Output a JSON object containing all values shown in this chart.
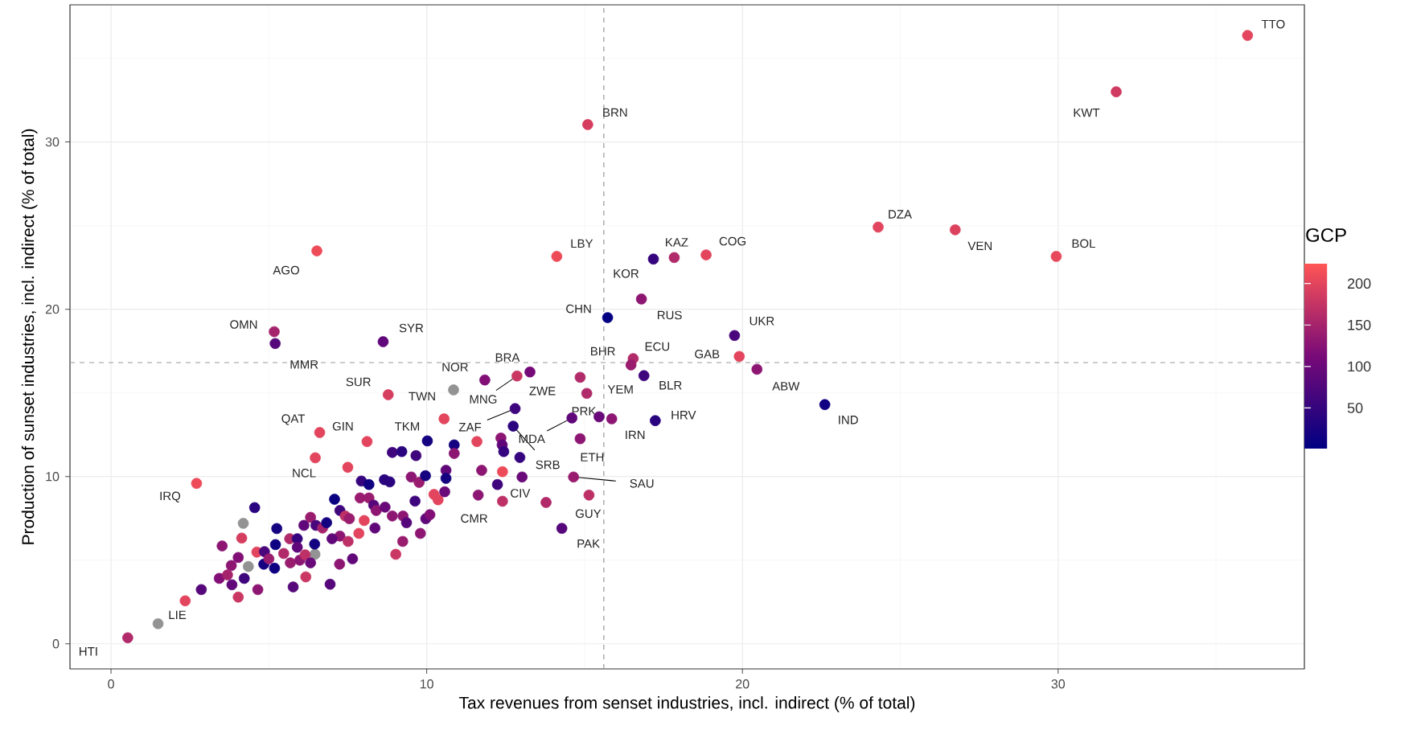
{
  "chart_data": {
    "type": "scatter",
    "xlabel": "Tax revenues from senset industries, incl. indirect (% of total)",
    "ylabel": "Production of sunset industries, incl. indirect (% of total)",
    "clabel": "GCP",
    "xlim": [
      -1.3,
      37.8
    ],
    "ylim": [
      -1.5,
      38.2
    ],
    "xticks": [
      0,
      10,
      20,
      30
    ],
    "yticks": [
      0,
      10,
      20,
      30
    ],
    "clim": [
      1,
      224
    ],
    "cticks": [
      50,
      100,
      150,
      200
    ],
    "grid": true,
    "marker": "circle",
    "x": [
      0.53,
      1.49,
      2.35,
      2.86,
      2.71,
      4.55,
      4.19,
      4.14,
      3.52,
      5.25,
      6.47,
      7.5,
      4.62,
      4.35,
      4.03,
      3.81,
      3.43,
      3.69,
      3.83,
      4.22,
      4.03,
      4.65,
      4.86,
      4.84,
      5.18,
      5.21,
      5.0,
      5.47,
      5.66,
      5.9,
      5.9,
      5.68,
      5.98,
      6.15,
      6.32,
      6.11,
      6.32,
      6.49,
      6.46,
      6.45,
      5.77,
      6.17,
      6.94,
      7.24,
      7.65,
      6.7,
      6.83,
      7.08,
      7.25,
      7.42,
      7.55,
      7.25,
      7.51,
      7.0,
      8.02,
      7.85,
      7.93,
      8.17,
      7.89,
      8.17,
      8.32,
      8.4,
      8.36,
      8.68,
      8.66,
      8.83,
      8.91,
      9.25,
      9.36,
      9.02,
      9.24,
      9.8,
      9.63,
      9.51,
      9.76,
      9.96,
      8.91,
      9.21,
      9.66,
      10.23,
      10.36,
      9.97,
      10.1,
      10.61,
      10.57,
      10.61,
      8.11,
      6.61,
      10.02,
      10.55,
      10.87,
      10.87,
      8.62,
      8.78,
      10.85,
      11.84,
      12.86,
      13.27,
      12.8,
      12.74,
      12.35,
      12.39,
      12.44,
      12.95,
      11.59,
      11.74,
      12.4,
      13.02,
      12.24,
      11.63,
      12.4,
      13.78,
      14.28,
      15.14,
      14.65,
      14.86,
      14.6,
      15.46,
      15.86,
      14.86,
      15.07,
      16.54,
      16.47,
      16.88,
      17.24,
      15.73,
      19.75,
      19.9,
      20.46,
      22.61,
      16.8,
      36.0,
      31.84,
      24.3,
      26.74,
      29.94,
      15.1,
      14.12,
      17.18,
      17.84,
      18.85,
      6.52,
      5.17,
      5.2
    ],
    "values": [
      0.36,
      1.2,
      2.57,
      3.24,
      9.59,
      8.14,
      7.2,
      6.32,
      5.85,
      6.89,
      11.12,
      10.55,
      5.48,
      4.62,
      5.16,
      4.68,
      3.91,
      4.12,
      3.53,
      3.91,
      2.79,
      3.24,
      5.51,
      4.76,
      4.52,
      5.93,
      5.08,
      5.4,
      6.28,
      6.28,
      5.77,
      4.84,
      5.0,
      5.32,
      4.84,
      7.08,
      7.56,
      7.08,
      5.35,
      5.96,
      3.4,
      4.0,
      3.56,
      4.76,
      5.08,
      6.92,
      7.24,
      8.64,
      7.97,
      7.64,
      7.48,
      6.44,
      6.12,
      6.28,
      7.37,
      6.6,
      9.73,
      9.52,
      8.72,
      8.72,
      8.29,
      7.97,
      6.92,
      8.17,
      9.81,
      9.68,
      7.64,
      7.64,
      7.24,
      5.35,
      6.12,
      6.6,
      8.53,
      9.97,
      9.65,
      10.05,
      11.44,
      11.49,
      11.25,
      8.93,
      8.61,
      7.48,
      7.72,
      10.37,
      9.09,
      9.89,
      12.09,
      12.63,
      12.13,
      13.45,
      11.89,
      11.38,
      18.06,
      14.89,
      15.18,
      15.77,
      16.01,
      16.25,
      14.06,
      13.01,
      12.3,
      11.89,
      11.49,
      11.14,
      12.09,
      10.37,
      10.29,
      9.97,
      9.52,
      8.89,
      8.52,
      8.45,
      6.9,
      8.89,
      9.97,
      12.26,
      13.5,
      13.57,
      13.45,
      15.93,
      14.97,
      17.05,
      16.67,
      16.03,
      13.34,
      19.5,
      18.43,
      17.18,
      16.41,
      14.3,
      20.61,
      36.37,
      33.0,
      24.91,
      24.75,
      23.16,
      31.04,
      23.16,
      23.0,
      23.09,
      23.25,
      23.49,
      18.66,
      17.95
    ],
    "cvalues": [
      160,
      null,
      200,
      80,
      210,
      40,
      null,
      190,
      130,
      20,
      200,
      200,
      200,
      null,
      120,
      130,
      120,
      150,
      90,
      60,
      180,
      130,
      70,
      20,
      15,
      15,
      140,
      160,
      160,
      50,
      90,
      140,
      130,
      170,
      100,
      90,
      140,
      70,
      null,
      20,
      80,
      180,
      80,
      130,
      90,
      150,
      20,
      10,
      60,
      170,
      140,
      130,
      170,
      90,
      200,
      200,
      50,
      15,
      140,
      140,
      80,
      130,
      90,
      100,
      40,
      40,
      130,
      130,
      80,
      180,
      140,
      130,
      60,
      130,
      140,
      20,
      60,
      40,
      60,
      200,
      200,
      90,
      120,
      90,
      100,
      20,
      200,
      200,
      20,
      200,
      20,
      130,
      90,
      190,
      null,
      120,
      180,
      110,
      60,
      40,
      130,
      90,
      50,
      50,
      200,
      130,
      210,
      100,
      60,
      130,
      170,
      160,
      80,
      170,
      140,
      130,
      90,
      100,
      130,
      160,
      160,
      160,
      140,
      60,
      40,
      5,
      70,
      200,
      130,
      15,
      130,
      200,
      185,
      200,
      195,
      205,
      190,
      210,
      50,
      160,
      200,
      210,
      150,
      80
    ],
    "ref_lines": [
      {
        "axis": "x",
        "value": 15.61,
        "color": "#999999",
        "line_style": "dashed"
      },
      {
        "axis": "y",
        "value": 16.81,
        "color": "#999999",
        "line_style": "dashed"
      }
    ],
    "annotations": [
      {
        "text": "HTI",
        "x": 0.53,
        "y": 0.36
      },
      {
        "text": "LIE",
        "x": 1.49,
        "y": 1.2
      },
      {
        "text": "IRQ",
        "x": 2.71,
        "y": 9.59
      },
      {
        "text": "NCL",
        "x": 6.47,
        "y": 11.12
      },
      {
        "text": "GIN",
        "x": 8.11,
        "y": 12.09
      },
      {
        "text": "QAT",
        "x": 6.61,
        "y": 12.63
      },
      {
        "text": "TKM",
        "x": 10.02,
        "y": 12.13
      },
      {
        "text": "SYR",
        "x": 8.62,
        "y": 18.06
      },
      {
        "text": "SUR",
        "x": 8.78,
        "y": 14.89
      },
      {
        "text": "TWN",
        "x": 10.85,
        "y": 15.18
      },
      {
        "text": "NOR",
        "x": 11.84,
        "y": 15.77
      },
      {
        "text": "MNG",
        "x": 12.86,
        "y": 16.01
      },
      {
        "text": "BRA",
        "x": 13.27,
        "y": 16.25
      },
      {
        "text": "ZAF",
        "x": 12.8,
        "y": 14.06
      },
      {
        "text": "SRB",
        "x": 12.74,
        "y": 13.01
      },
      {
        "text": "ZWE",
        "x": 12.8,
        "y": 14.06
      },
      {
        "text": "CMR",
        "x": 11.63,
        "y": 8.89
      },
      {
        "text": "CIV",
        "x": 12.4,
        "y": 8.52
      },
      {
        "text": "PAK",
        "x": 14.28,
        "y": 6.9
      },
      {
        "text": "GUY",
        "x": 15.14,
        "y": 8.89
      },
      {
        "text": "SAU",
        "x": 14.65,
        "y": 9.97
      },
      {
        "text": "ETH",
        "x": 14.86,
        "y": 12.26
      },
      {
        "text": "MDA",
        "x": 14.6,
        "y": 13.5
      },
      {
        "text": "PRK",
        "x": 15.46,
        "y": 13.57
      },
      {
        "text": "IRN",
        "x": 15.86,
        "y": 13.45
      },
      {
        "text": "YEM",
        "x": 15.07,
        "y": 14.97
      },
      {
        "text": "ECU",
        "x": 16.54,
        "y": 17.05
      },
      {
        "text": "BHR",
        "x": 16.47,
        "y": 16.67
      },
      {
        "text": "BLR",
        "x": 16.88,
        "y": 16.03
      },
      {
        "text": "HRV",
        "x": 17.24,
        "y": 13.34
      },
      {
        "text": "CHN",
        "x": 15.73,
        "y": 19.5
      },
      {
        "text": "UKR",
        "x": 19.75,
        "y": 18.43
      },
      {
        "text": "GAB",
        "x": 19.9,
        "y": 17.18
      },
      {
        "text": "ABW",
        "x": 20.46,
        "y": 16.41
      },
      {
        "text": "IND",
        "x": 22.61,
        "y": 14.3
      },
      {
        "text": "RUS",
        "x": 16.8,
        "y": 20.61
      },
      {
        "text": "TTO",
        "x": 36.0,
        "y": 36.37
      },
      {
        "text": "KWT",
        "x": 31.84,
        "y": 33.0
      },
      {
        "text": "DZA",
        "x": 24.3,
        "y": 24.91
      },
      {
        "text": "VEN",
        "x": 26.74,
        "y": 24.75
      },
      {
        "text": "BOL",
        "x": 29.94,
        "y": 23.16
      },
      {
        "text": "BRN",
        "x": 15.1,
        "y": 31.04
      },
      {
        "text": "LBY",
        "x": 14.12,
        "y": 23.16
      },
      {
        "text": "KOR",
        "x": 17.18,
        "y": 23.0
      },
      {
        "text": "KAZ",
        "x": 17.84,
        "y": 23.09
      },
      {
        "text": "COG",
        "x": 18.85,
        "y": 23.25
      },
      {
        "text": "AGO",
        "x": 6.52,
        "y": 23.49
      },
      {
        "text": "OMN",
        "x": 5.17,
        "y": 18.66
      },
      {
        "text": "MMR",
        "x": 5.2,
        "y": 17.95
      }
    ]
  }
}
